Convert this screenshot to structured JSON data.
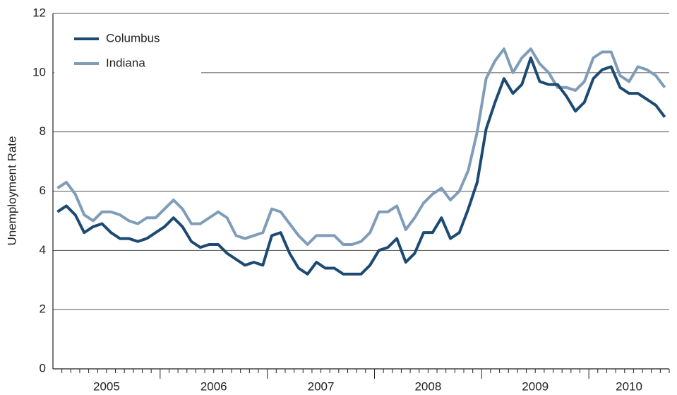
{
  "chart_data": {
    "type": "line",
    "y_label": "Unemployment Rate",
    "categories": [
      "2005",
      null,
      null,
      null,
      null,
      null,
      null,
      null,
      null,
      null,
      null,
      null,
      "2006",
      null,
      null,
      null,
      null,
      null,
      null,
      null,
      null,
      null,
      null,
      null,
      "2007",
      null,
      null,
      null,
      null,
      null,
      null,
      null,
      null,
      null,
      null,
      null,
      "2008",
      null,
      null,
      null,
      null,
      null,
      null,
      null,
      null,
      null,
      null,
      null,
      "2009",
      null,
      null,
      null,
      null,
      null,
      null,
      null,
      null,
      null,
      null,
      null,
      "2010",
      null,
      null,
      null,
      null,
      null,
      null,
      null,
      null
    ],
    "series": [
      {
        "name": "Columbus",
        "color": "#1d4a72",
        "values": [
          5.3,
          5.5,
          5.2,
          4.6,
          4.8,
          4.9,
          4.6,
          4.4,
          4.4,
          4.3,
          4.4,
          4.6,
          4.8,
          5.1,
          4.8,
          4.3,
          4.1,
          4.2,
          4.2,
          3.9,
          3.7,
          3.5,
          3.6,
          3.5,
          4.5,
          4.6,
          3.9,
          3.4,
          3.2,
          3.6,
          3.4,
          3.4,
          3.2,
          3.2,
          3.2,
          3.5,
          4.0,
          4.1,
          4.4,
          3.6,
          3.9,
          4.6,
          4.6,
          5.1,
          4.4,
          4.6,
          5.4,
          6.3,
          8.1,
          9.0,
          9.8,
          9.3,
          9.6,
          10.5,
          9.7,
          9.6,
          9.6,
          9.2,
          8.7,
          9.0,
          9.8,
          10.1,
          10.2,
          9.5,
          9.3,
          9.3,
          9.1,
          8.9,
          8.5
        ]
      },
      {
        "name": "Indiana",
        "color": "#7f9db9",
        "values": [
          6.1,
          6.3,
          5.9,
          5.2,
          5.0,
          5.3,
          5.3,
          5.2,
          5.0,
          4.9,
          5.1,
          5.1,
          5.4,
          5.7,
          5.4,
          4.9,
          4.9,
          5.1,
          5.3,
          5.1,
          4.5,
          4.4,
          4.5,
          4.6,
          5.4,
          5.3,
          4.9,
          4.5,
          4.2,
          4.5,
          4.5,
          4.5,
          4.2,
          4.2,
          4.3,
          4.6,
          5.3,
          5.3,
          5.5,
          4.7,
          5.1,
          5.6,
          5.9,
          6.1,
          5.7,
          6.0,
          6.7,
          8.0,
          9.8,
          10.4,
          10.8,
          10.0,
          10.5,
          10.8,
          10.3,
          10.0,
          9.5,
          9.5,
          9.4,
          9.7,
          10.5,
          10.7,
          10.7,
          9.9,
          9.7,
          10.2,
          10.1,
          9.9,
          9.5
        ]
      }
    ],
    "ylim": [
      0,
      12
    ],
    "yticks": [
      0,
      2,
      4,
      6,
      8,
      10,
      12
    ],
    "grid": true,
    "legend": "top-left"
  }
}
